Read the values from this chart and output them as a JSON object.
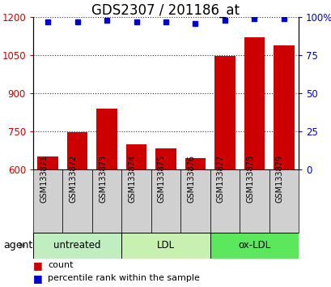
{
  "title": "GDS2307 / 201186_at",
  "samples": [
    "GSM133871",
    "GSM133872",
    "GSM133873",
    "GSM133874",
    "GSM133875",
    "GSM133876",
    "GSM133877",
    "GSM133878",
    "GSM133879"
  ],
  "counts": [
    650,
    748,
    840,
    700,
    683,
    645,
    1048,
    1120,
    1090
  ],
  "percentiles": [
    97,
    97,
    98,
    97,
    97,
    96,
    98,
    99,
    99
  ],
  "groups": [
    {
      "label": "untreated",
      "indices": [
        0,
        1,
        2
      ],
      "color": "#c0eec0"
    },
    {
      "label": "LDL",
      "indices": [
        3,
        4,
        5
      ],
      "color": "#c8f0b0"
    },
    {
      "label": "ox-LDL",
      "indices": [
        6,
        7,
        8
      ],
      "color": "#5ce85c"
    }
  ],
  "ylim_left": [
    600,
    1200
  ],
  "ylim_right": [
    0,
    100
  ],
  "yticks_left": [
    600,
    750,
    900,
    1050,
    1200
  ],
  "yticks_right": [
    0,
    25,
    50,
    75,
    100
  ],
  "ytick_labels_right": [
    "0",
    "25",
    "50",
    "75",
    "100%"
  ],
  "bar_color": "#cc0000",
  "dot_color": "#0000cc",
  "bar_width": 0.7,
  "xticklabel_bg": "#d0d0d0",
  "title_fontsize": 12,
  "tick_fontsize": 8.5,
  "agent_label": "agent",
  "legend_count_label": "count",
  "legend_percentile_label": "percentile rank within the sample"
}
